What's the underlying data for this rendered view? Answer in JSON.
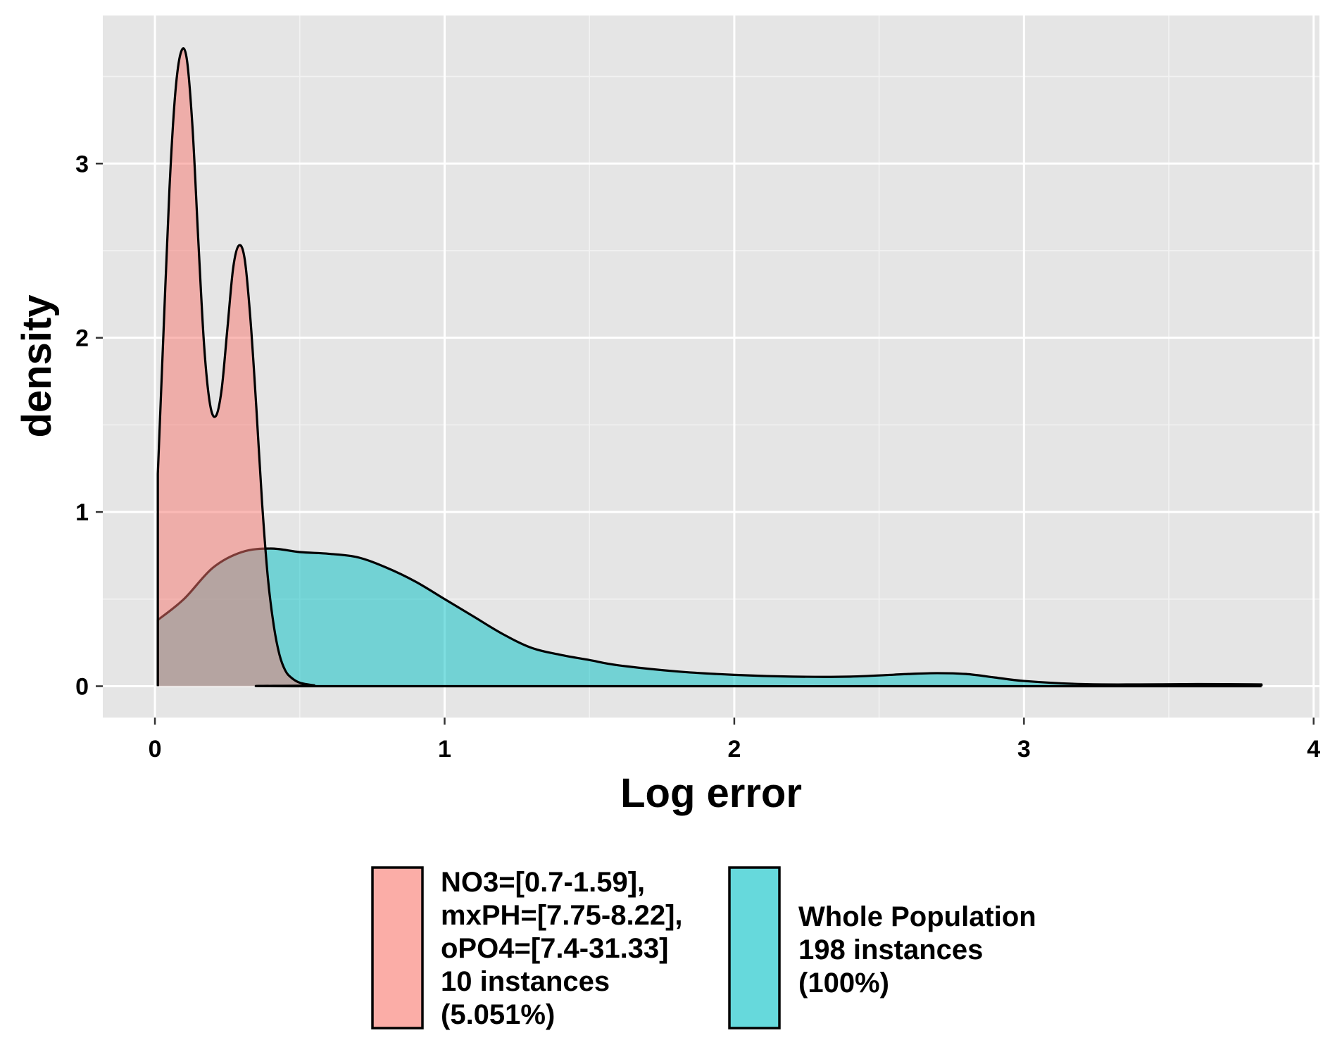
{
  "chart_data": {
    "type": "area",
    "xlabel": "Log error",
    "ylabel": "density",
    "xlim": [
      -0.18,
      4.02
    ],
    "ylim": [
      -0.18,
      3.85
    ],
    "x_ticks": [
      "0",
      "1",
      "2",
      "3",
      "4"
    ],
    "y_ticks": [
      "0",
      "1",
      "2",
      "3"
    ],
    "grid": true,
    "legend_position": "bottom",
    "series": [
      {
        "name_lines": [
          "NO3=[0.7-1.59],",
          "mxPH=[7.75-8.22],",
          "oPO4=[7.4-31.33]",
          "10 instances",
          "(5.051%)"
        ],
        "color": "#F8766D",
        "x": [
          0.01,
          0.03,
          0.05,
          0.07,
          0.09,
          0.11,
          0.13,
          0.15,
          0.17,
          0.19,
          0.21,
          0.23,
          0.25,
          0.27,
          0.29,
          0.31,
          0.33,
          0.35,
          0.37,
          0.39,
          0.41,
          0.43,
          0.45,
          0.47,
          0.5,
          0.55,
          0.6,
          3.82
        ],
        "y": [
          1.22,
          2.05,
          2.85,
          3.4,
          3.64,
          3.6,
          3.2,
          2.55,
          1.95,
          1.62,
          1.55,
          1.7,
          2.05,
          2.4,
          2.53,
          2.45,
          2.1,
          1.6,
          1.05,
          0.62,
          0.35,
          0.18,
          0.09,
          0.05,
          0.02,
          0.005,
          0.0,
          0.0
        ]
      },
      {
        "name_lines": [
          "Whole Population",
          "198 instances",
          "(100%)"
        ],
        "color": "#00BFC4",
        "x": [
          0.01,
          0.1,
          0.2,
          0.3,
          0.4,
          0.5,
          0.6,
          0.7,
          0.8,
          0.9,
          1.0,
          1.1,
          1.2,
          1.3,
          1.4,
          1.5,
          1.6,
          1.8,
          2.0,
          2.2,
          2.4,
          2.6,
          2.7,
          2.8,
          2.9,
          3.0,
          3.2,
          3.4,
          3.6,
          3.82
        ],
        "y": [
          0.38,
          0.5,
          0.68,
          0.77,
          0.79,
          0.77,
          0.76,
          0.74,
          0.68,
          0.6,
          0.5,
          0.4,
          0.3,
          0.22,
          0.18,
          0.15,
          0.12,
          0.085,
          0.065,
          0.055,
          0.055,
          0.07,
          0.075,
          0.07,
          0.05,
          0.03,
          0.012,
          0.01,
          0.012,
          0.01
        ]
      }
    ]
  }
}
